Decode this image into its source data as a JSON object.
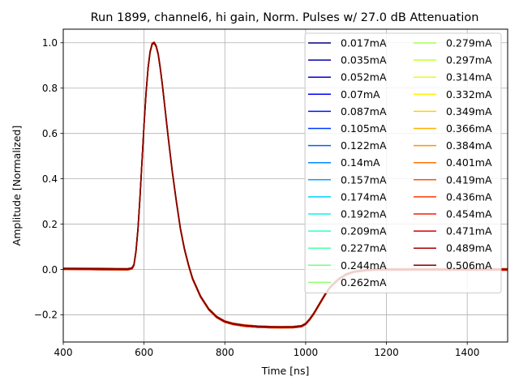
{
  "chart_data": {
    "type": "line",
    "title": "Run 1899, channel6, hi gain, Norm. Pulses w/ 27.0 dB Attenuation",
    "xlabel": "Time [ns]",
    "ylabel": "Amplitude [Normalized]",
    "xlim": [
      400,
      1500
    ],
    "ylim": [
      -0.32,
      1.06
    ],
    "grid": true,
    "legend_position": "top-right",
    "legend_columns": 2,
    "x_ticks": [
      {
        "value": 400,
        "label": "400"
      },
      {
        "value": 600,
        "label": "600"
      },
      {
        "value": 800,
        "label": "800"
      },
      {
        "value": 1000,
        "label": "1000"
      },
      {
        "value": 1200,
        "label": "1200"
      },
      {
        "value": 1400,
        "label": "1400"
      }
    ],
    "y_ticks": [
      {
        "value": -0.2,
        "label": "−0.2"
      },
      {
        "value": 0.0,
        "label": "0.0"
      },
      {
        "value": 0.2,
        "label": "0.2"
      },
      {
        "value": 0.4,
        "label": "0.4"
      },
      {
        "value": 0.6,
        "label": "0.6"
      },
      {
        "value": 0.8,
        "label": "0.8"
      },
      {
        "value": 1.0,
        "label": "1.0"
      }
    ],
    "pulse_shape": {
      "x": [
        400,
        560,
        570,
        575,
        580,
        585,
        590,
        595,
        600,
        605,
        610,
        615,
        620,
        625,
        630,
        635,
        640,
        645,
        650,
        660,
        670,
        680,
        690,
        700,
        710,
        720,
        740,
        760,
        780,
        800,
        820,
        850,
        880,
        910,
        940,
        970,
        990,
        1000,
        1010,
        1020,
        1030,
        1040,
        1050,
        1060,
        1080,
        1100,
        1120,
        1150,
        1180,
        1200,
        1250,
        1300,
        1400,
        1500
      ],
      "y": [
        0.003,
        0.001,
        0.005,
        0.02,
        0.08,
        0.18,
        0.32,
        0.48,
        0.64,
        0.78,
        0.89,
        0.96,
        0.995,
        1.0,
        0.985,
        0.95,
        0.89,
        0.82,
        0.74,
        0.58,
        0.43,
        0.3,
        0.18,
        0.09,
        0.02,
        -0.04,
        -0.12,
        -0.175,
        -0.21,
        -0.23,
        -0.24,
        -0.248,
        -0.252,
        -0.254,
        -0.255,
        -0.254,
        -0.25,
        -0.24,
        -0.22,
        -0.195,
        -0.165,
        -0.135,
        -0.105,
        -0.08,
        -0.045,
        -0.022,
        -0.01,
        -0.003,
        0.0,
        0.0,
        0.0,
        0.0,
        0.0,
        0.0
      ]
    },
    "series": [
      {
        "name": "0.017mA",
        "color": "#000080"
      },
      {
        "name": "0.035mA",
        "color": "#0000a8"
      },
      {
        "name": "0.052mA",
        "color": "#0000d0"
      },
      {
        "name": "0.07mA",
        "color": "#0000f8"
      },
      {
        "name": "0.087mA",
        "color": "#0010ff"
      },
      {
        "name": "0.105mA",
        "color": "#0038ff"
      },
      {
        "name": "0.122mA",
        "color": "#0060ff"
      },
      {
        "name": "0.14mA",
        "color": "#0088ff"
      },
      {
        "name": "0.157mA",
        "color": "#00a8ff"
      },
      {
        "name": "0.174mA",
        "color": "#00d0ff"
      },
      {
        "name": "0.192mA",
        "color": "#10f0e6"
      },
      {
        "name": "0.209mA",
        "color": "#30ffc6"
      },
      {
        "name": "0.227mA",
        "color": "#50ffa6"
      },
      {
        "name": "0.244mA",
        "color": "#70ff86"
      },
      {
        "name": "0.262mA",
        "color": "#90ff66"
      },
      {
        "name": "0.279mA",
        "color": "#a6ff50"
      },
      {
        "name": "0.297mA",
        "color": "#c6ff30"
      },
      {
        "name": "0.314mA",
        "color": "#e6ff10"
      },
      {
        "name": "0.332mA",
        "color": "#fff000"
      },
      {
        "name": "0.349mA",
        "color": "#ffd000"
      },
      {
        "name": "0.366mA",
        "color": "#ffb000"
      },
      {
        "name": "0.384mA",
        "color": "#ff9400"
      },
      {
        "name": "0.401mA",
        "color": "#ff7400"
      },
      {
        "name": "0.419mA",
        "color": "#ff5800"
      },
      {
        "name": "0.436mA",
        "color": "#ff3800"
      },
      {
        "name": "0.454mA",
        "color": "#f81c00"
      },
      {
        "name": "0.471mA",
        "color": "#d00000"
      },
      {
        "name": "0.489mA",
        "color": "#a80000"
      },
      {
        "name": "0.506mA",
        "color": "#800000"
      }
    ]
  }
}
